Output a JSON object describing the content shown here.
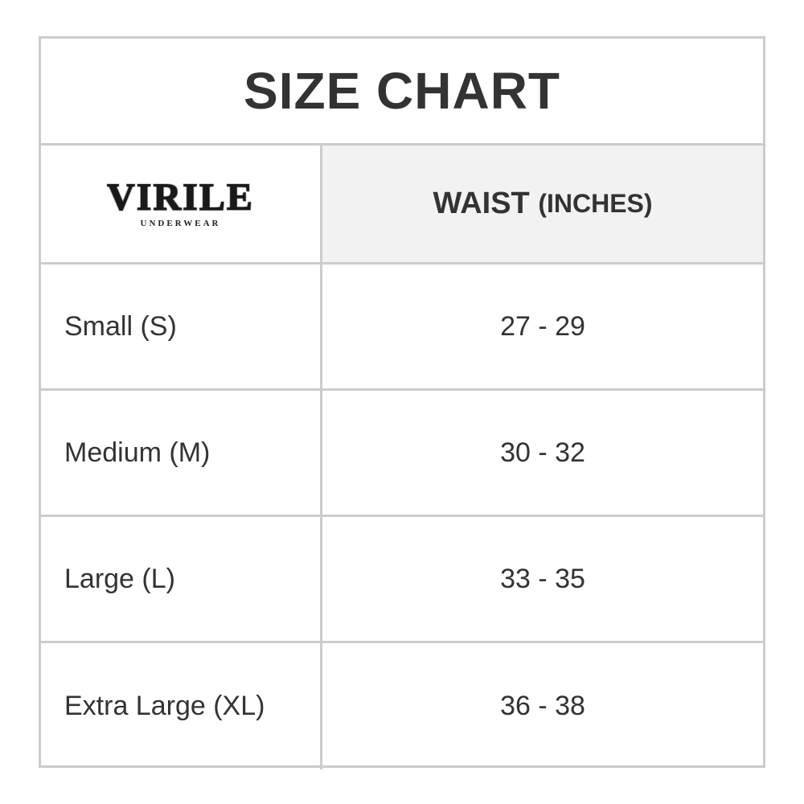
{
  "title": "SIZE CHART",
  "logo": {
    "name": "VIRILE",
    "tagline": "UNDERWEAR"
  },
  "header": {
    "column": "WAIST",
    "unit": "(INCHES)"
  },
  "rows": [
    {
      "size": "Small (S)",
      "waist": "27 - 29"
    },
    {
      "size": "Medium (M)",
      "waist": "30 - 32"
    },
    {
      "size": "Large (L)",
      "waist": "33 - 35"
    },
    {
      "size": "Extra Large (XL)",
      "waist": "36 - 38"
    }
  ],
  "colors": {
    "border": "#cccccc",
    "header_bg": "#f2f2f2",
    "text": "#333333"
  }
}
